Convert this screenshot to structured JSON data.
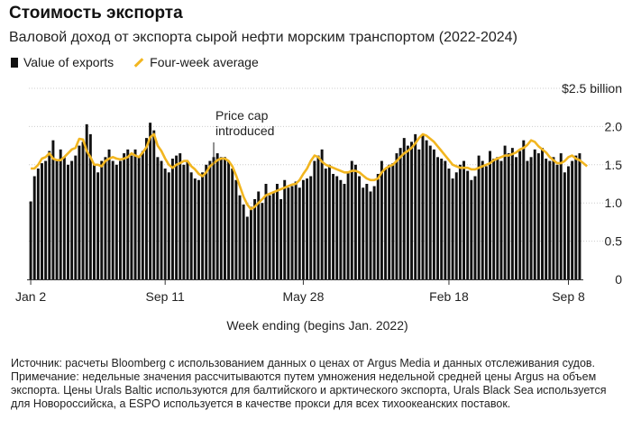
{
  "title": "Стоимость экспорта",
  "subtitle": "Валовой доход от экспорта сырой нефти морским транспортом (2022-2024)",
  "legend": {
    "bars": "Value of exports",
    "line": "Four-week average"
  },
  "colors": {
    "bar": "#111111",
    "line": "#f2b620",
    "grid": "#cccccc",
    "axis": "#333333"
  },
  "chart_data": {
    "type": "bar",
    "title": "Стоимость экспорта",
    "xlabel": "Week ending (begins Jan. 2022)",
    "ylabel": "$ billion",
    "ylim": [
      0,
      2.5
    ],
    "ytick_values": [
      0,
      0.5,
      1.0,
      1.5,
      2.0,
      2.5
    ],
    "ytick_labels": [
      "0",
      "0.5",
      "1.0",
      "1.5",
      "2.0",
      "$2.5 billion"
    ],
    "xtick_labels": [
      "Jan 2",
      "Sep 11",
      "May 28",
      "Feb 18",
      "Sep 8"
    ],
    "xtick_index": [
      0,
      36,
      73,
      112,
      144
    ],
    "annotation": {
      "text_line1": "Price cap",
      "text_line2": "introduced",
      "index": 49
    },
    "series": [
      {
        "name": "Value of exports",
        "type": "bar",
        "values": [
          1.02,
          1.35,
          1.45,
          1.52,
          1.55,
          1.68,
          1.82,
          1.55,
          1.7,
          1.6,
          1.5,
          1.55,
          1.62,
          1.75,
          1.8,
          2.03,
          1.9,
          1.5,
          1.4,
          1.55,
          1.6,
          1.7,
          1.55,
          1.5,
          1.55,
          1.65,
          1.7,
          1.62,
          1.7,
          1.6,
          1.68,
          1.85,
          2.05,
          1.95,
          1.6,
          1.55,
          1.45,
          1.4,
          1.58,
          1.62,
          1.65,
          1.5,
          1.55,
          1.4,
          1.32,
          1.3,
          1.4,
          1.5,
          1.55,
          1.6,
          1.65,
          1.6,
          1.6,
          1.55,
          1.45,
          1.3,
          1.1,
          0.98,
          0.82,
          0.95,
          1.05,
          1.15,
          1.0,
          1.25,
          1.1,
          1.15,
          1.25,
          1.05,
          1.3,
          1.2,
          1.22,
          1.28,
          1.2,
          1.3,
          1.32,
          1.35,
          1.55,
          1.62,
          1.7,
          1.45,
          1.5,
          1.38,
          1.35,
          1.3,
          1.25,
          1.4,
          1.55,
          1.5,
          1.35,
          1.2,
          1.25,
          1.15,
          1.22,
          1.38,
          1.55,
          1.45,
          1.5,
          1.52,
          1.65,
          1.72,
          1.85,
          1.75,
          1.8,
          1.9,
          1.7,
          1.88,
          1.82,
          1.75,
          1.7,
          1.6,
          1.58,
          1.55,
          1.45,
          1.32,
          1.4,
          1.5,
          1.55,
          1.42,
          1.3,
          1.35,
          1.62,
          1.55,
          1.48,
          1.68,
          1.58,
          1.6,
          1.55,
          1.75,
          1.65,
          1.72,
          1.6,
          1.68,
          1.82,
          1.55,
          1.6,
          1.7,
          1.65,
          1.72,
          1.58,
          1.55,
          1.6,
          1.5,
          1.65,
          1.4,
          1.48,
          1.55,
          1.62,
          1.65
        ]
      },
      {
        "name": "Four-week average",
        "type": "line",
        "values": [
          1.45,
          1.45,
          1.5,
          1.58,
          1.6,
          1.65,
          1.58,
          1.56,
          1.56,
          1.6,
          1.65,
          1.7,
          1.72,
          1.84,
          1.83,
          1.68,
          1.6,
          1.5,
          1.5,
          1.48,
          1.55,
          1.58,
          1.6,
          1.58,
          1.57,
          1.58,
          1.6,
          1.65,
          1.62,
          1.6,
          1.66,
          1.73,
          1.86,
          1.9,
          1.75,
          1.68,
          1.58,
          1.5,
          1.46,
          1.5,
          1.52,
          1.55,
          1.55,
          1.48,
          1.44,
          1.38,
          1.35,
          1.4,
          1.48,
          1.52,
          1.56,
          1.58,
          1.58,
          1.55,
          1.48,
          1.36,
          1.22,
          1.08,
          0.98,
          0.92,
          0.95,
          1.0,
          1.05,
          1.1,
          1.12,
          1.14,
          1.16,
          1.18,
          1.2,
          1.22,
          1.24,
          1.25,
          1.3,
          1.38,
          1.45,
          1.55,
          1.62,
          1.6,
          1.54,
          1.5,
          1.48,
          1.46,
          1.44,
          1.42,
          1.4,
          1.4,
          1.42,
          1.42,
          1.4,
          1.36,
          1.32,
          1.3,
          1.3,
          1.32,
          1.4,
          1.45,
          1.48,
          1.5,
          1.55,
          1.6,
          1.65,
          1.68,
          1.72,
          1.78,
          1.85,
          1.9,
          1.88,
          1.84,
          1.8,
          1.74,
          1.68,
          1.62,
          1.56,
          1.5,
          1.48,
          1.46,
          1.46,
          1.46,
          1.44,
          1.44,
          1.46,
          1.48,
          1.5,
          1.52,
          1.56,
          1.58,
          1.6,
          1.62,
          1.62,
          1.64,
          1.66,
          1.7,
          1.72,
          1.76,
          1.82,
          1.8,
          1.74,
          1.7,
          1.66,
          1.6,
          1.56,
          1.52,
          1.52,
          1.55,
          1.6,
          1.62,
          1.58,
          1.56,
          1.52,
          1.48
        ]
      }
    ]
  },
  "notes": {
    "source": "Источник: расчеты Bloomberg с использованием данных о ценах от Argus Media и данных отслеживания судов.",
    "remark": "Примечание: недельные значения рассчитываются путем умножения недельной средней цены Argus на объем экспорта. Цены Urals Baltic используются для балтийского и арктического экспорта, Urals Black Sea используется для Новороссийска, а ESPO используется в качестве прокси для всех тихоокеанских поставок."
  }
}
